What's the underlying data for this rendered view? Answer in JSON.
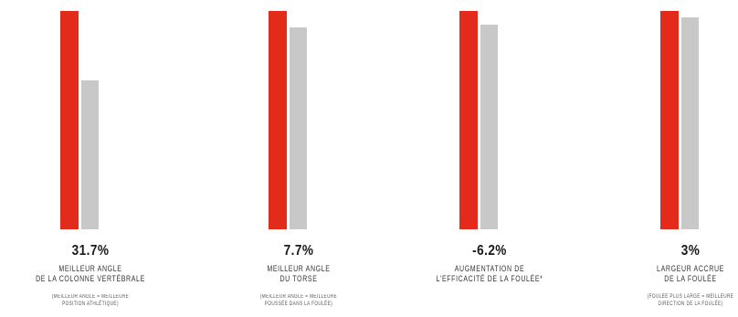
{
  "chart_data": {
    "type": "bar",
    "series_colors": [
      "#e32b1c",
      "#c8c8c8"
    ],
    "ylim": [
      0,
      100
    ],
    "groups": [
      {
        "value_text": "31.7%",
        "label_lines": [
          "MEILLEUR ANGLE",
          "DE LA COLONNE VERTÉBRALE"
        ],
        "note_lines": [
          "(MEILLEUR ANGLE = MEILLEURE",
          "POSITION ATHLÉTIQUE)"
        ],
        "values": [
          100,
          68.3
        ]
      },
      {
        "value_text": "7.7%",
        "label_lines": [
          "MEILLEUR ANGLE",
          "DU TORSE"
        ],
        "note_lines": [
          "(MEILLEUR ANGLE = MEILLEURE",
          "POUSSÉE DANS LA FOULÉE)"
        ],
        "values": [
          100,
          92.3
        ]
      },
      {
        "value_text": "-6.2%",
        "label_lines": [
          "AUGMENTATION DE",
          "L'EFFICACITÉ DE LA FOULÉE*"
        ],
        "note_lines": [],
        "values": [
          100,
          93.8
        ]
      },
      {
        "value_text": "3%",
        "label_lines": [
          "LARGEUR ACCRUE",
          "DE LA FOULÉE"
        ],
        "note_lines": [
          "(FOULÉE PLUS LARGE = MEILLEURE",
          "DIRECTION DE LA FOULÉE)"
        ],
        "values": [
          100,
          97
        ]
      }
    ]
  }
}
